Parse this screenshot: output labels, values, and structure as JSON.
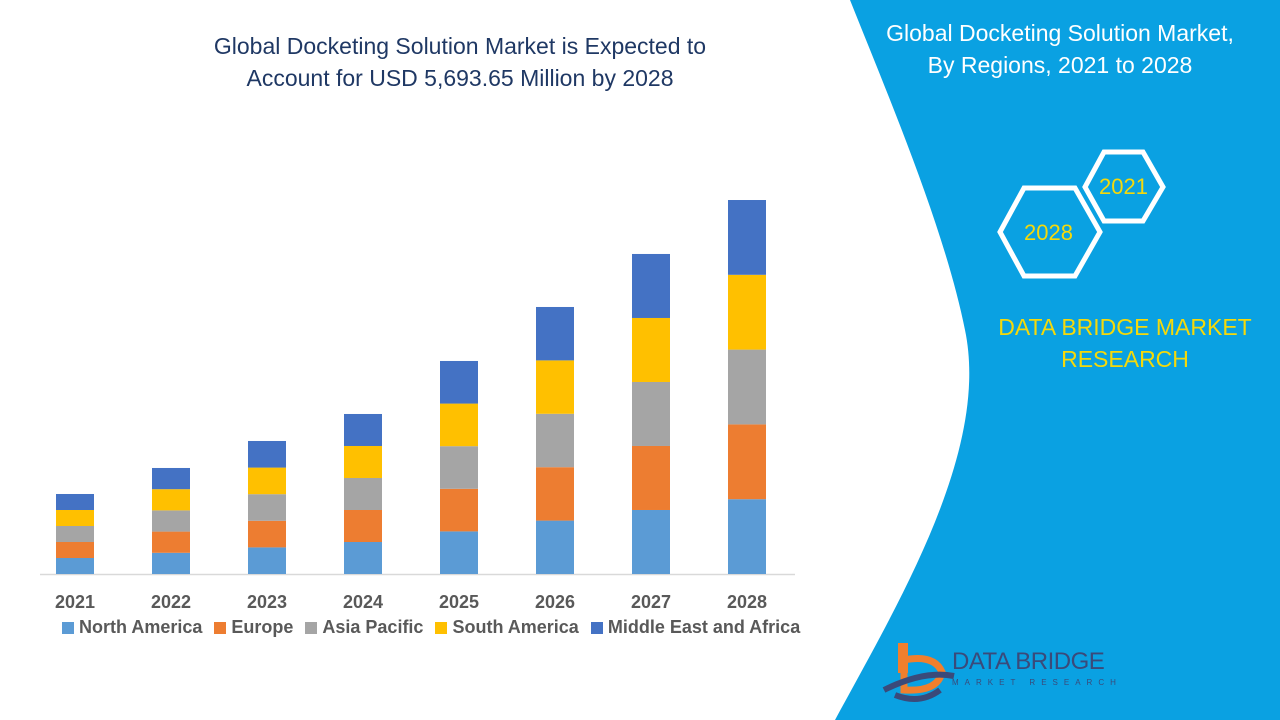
{
  "title": "Global Docketing Solution Market is Expected to Account for USD 5,693.65 Million by 2028",
  "title_lines": [
    "Global Docketing Solution Market is Expected to",
    "Account for USD 5,693.65 Million by 2028"
  ],
  "right_panel": {
    "title_lines": [
      "Global Docketing Solution Market,",
      "By Regions, 2021 to 2028"
    ],
    "hex_labels": [
      "2021",
      "2028"
    ],
    "brand_lines": [
      "DATA BRIDGE MARKET",
      "RESEARCH"
    ],
    "logo_text": "DATA BRIDGE",
    "logo_sub": "MARKET RESEARCH",
    "background_color": "#0aa1e2"
  },
  "chart_data": {
    "type": "bar",
    "stacked": true,
    "title": "Global Docketing Solution Market is Expected to Account for USD 5,693.65 Million by 2028",
    "xlabel": "",
    "ylabel": "",
    "categories": [
      "2021",
      "2022",
      "2023",
      "2024",
      "2025",
      "2026",
      "2027",
      "2028"
    ],
    "ylim": [
      0,
      5693.65
    ],
    "grid": false,
    "legend": "bottom",
    "series": [
      {
        "name": "North America",
        "color": "#5b9bd5",
        "values": [
          243.6,
          322.8,
          405,
          487.2,
          648.6,
          813,
          974.4,
          1138.7
        ]
      },
      {
        "name": "Europe",
        "color": "#ed7d31",
        "values": [
          243.6,
          322.8,
          405,
          487.2,
          648.6,
          813,
          974.4,
          1138.7
        ]
      },
      {
        "name": "Asia Pacific",
        "color": "#a5a5a5",
        "values": [
          243.6,
          322.8,
          405,
          487.2,
          648.6,
          813,
          974.4,
          1138.7
        ]
      },
      {
        "name": "South America",
        "color": "#ffc000",
        "values": [
          243.6,
          322.8,
          405,
          487.2,
          648.6,
          813,
          974.4,
          1138.7
        ]
      },
      {
        "name": "Middle East and Africa",
        "color": "#4472c4",
        "values": [
          243.6,
          322.8,
          405,
          487.2,
          648.6,
          813,
          974.4,
          1138.7
        ]
      }
    ]
  }
}
